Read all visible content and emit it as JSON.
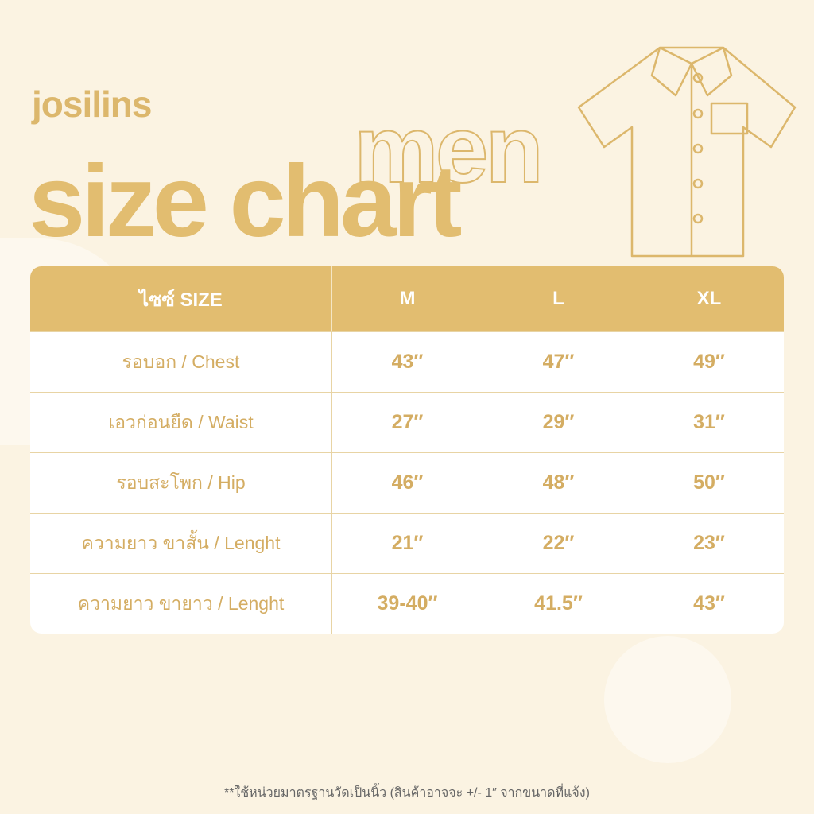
{
  "brand": "josilins",
  "title_outline": "men",
  "title": "size chart",
  "table": {
    "headers": [
      "ไซซ์ SIZE",
      "M",
      "L",
      "XL"
    ],
    "rows": [
      {
        "label": "รอบอก / Chest",
        "values": [
          "43″",
          "47″",
          "49″"
        ]
      },
      {
        "label": "เอวก่อนยืด / Waist",
        "values": [
          "27″",
          "29″",
          "31″"
        ]
      },
      {
        "label": "รอบสะโพก / Hip",
        "values": [
          "46″",
          "48″",
          "50″"
        ]
      },
      {
        "label": "ความยาว ขาสั้น / Lenght",
        "values": [
          "21″",
          "22″",
          "23″"
        ]
      },
      {
        "label": "ความยาว ขายาว / Lenght",
        "values": [
          "39-40″",
          "41.5″",
          "43″"
        ]
      }
    ]
  },
  "note": "**ใช้หน่วยมาตรฐานวัดเป็นนิ้ว (สินค้าอาจจะ +/- 1″ จากขนาดที่แจ้ง)",
  "colors": {
    "accent": "#e2bd70",
    "background": "#fbf3e2"
  },
  "icons": {
    "illustration": "shirt-icon"
  }
}
